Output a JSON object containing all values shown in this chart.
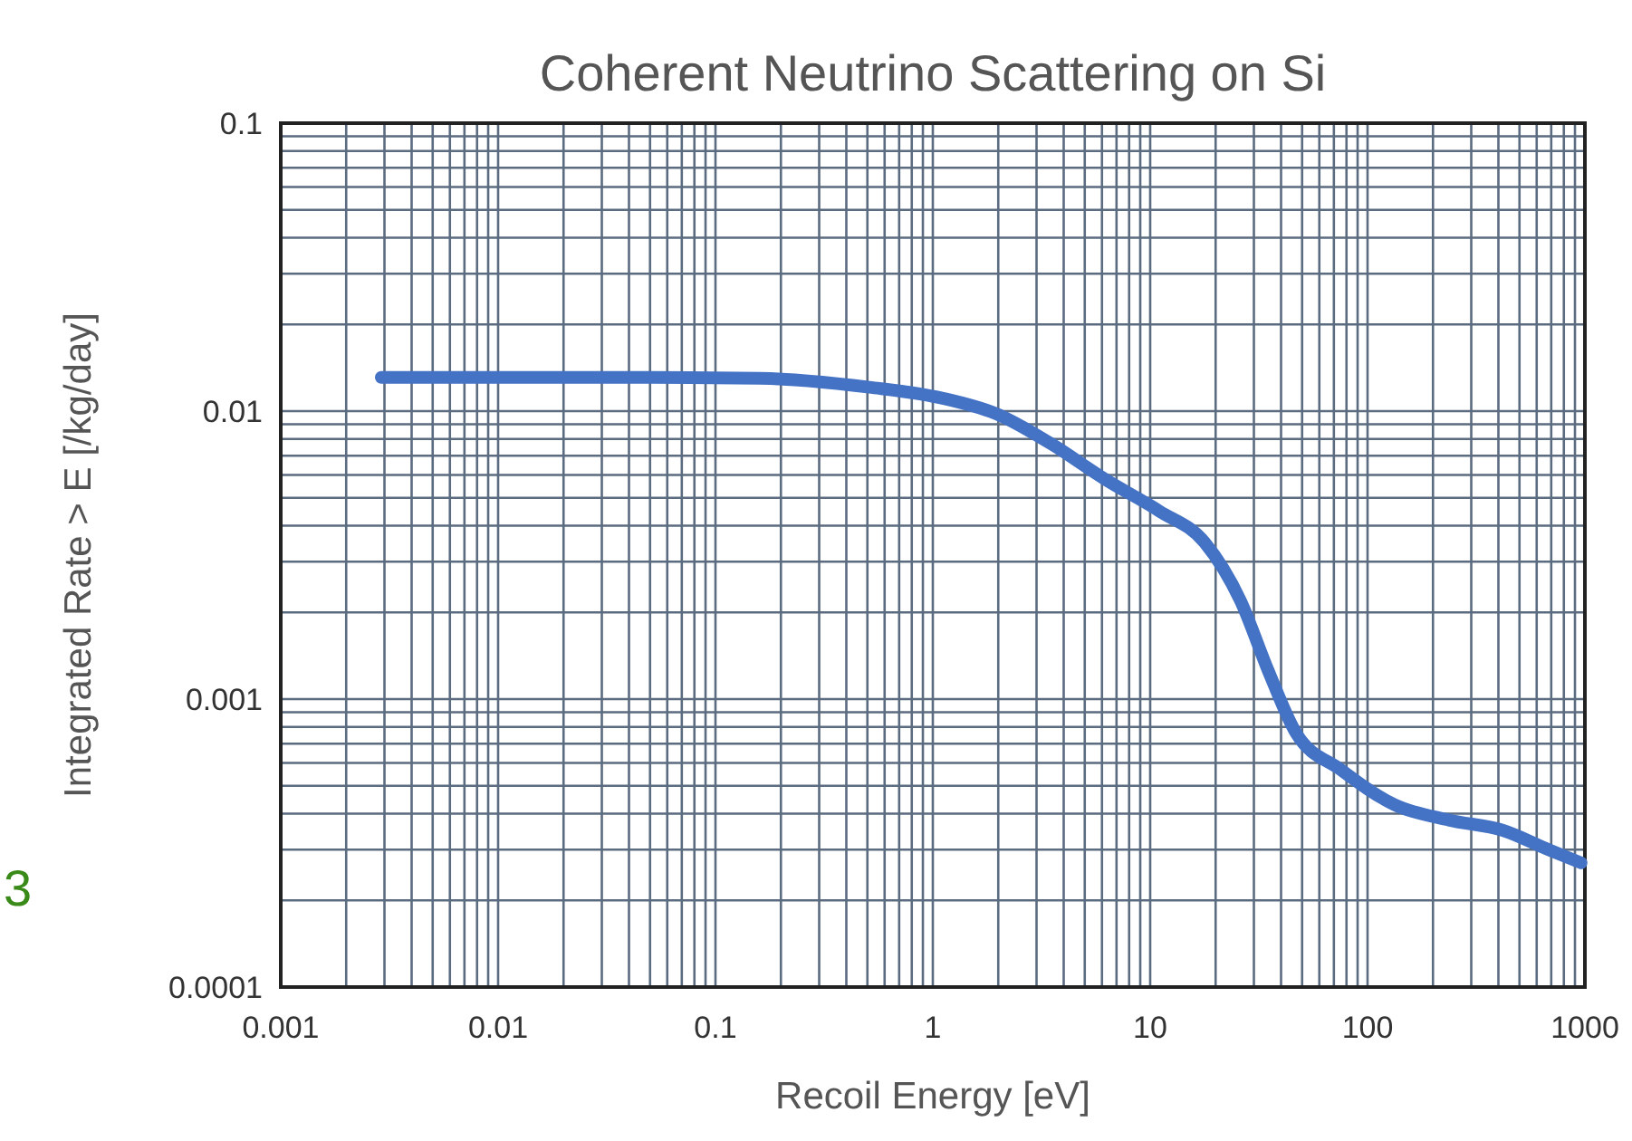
{
  "chart_data": {
    "type": "line",
    "title": "Coherent Neutrino Scattering on Si",
    "xlabel": "Recoil Energy [eV]",
    "ylabel": "Integrated Rate > E [/kg/day]",
    "log": "xy",
    "grid": true,
    "marker": "none",
    "line_style": "solid",
    "xlim": [
      0.001,
      1000
    ],
    "xticks": [
      0.001,
      0.01,
      0.1,
      1,
      10,
      100,
      1000
    ],
    "ylim": [
      0.0001,
      0.1
    ],
    "yticks": [
      0.0001,
      0.001,
      0.01,
      0.1
    ],
    "annotations": [
      "3"
    ],
    "x": [
      0.0029,
      0.051,
      0.16,
      0.51,
      1.1,
      1.95,
      3.5,
      6.2,
      11,
      17.8,
      26,
      35,
      47,
      75,
      133,
      237,
      420,
      680,
      960
    ],
    "series": [
      {
        "color": "#4472c4",
        "values": [
          0.0131,
          0.0131,
          0.013,
          0.0121,
          0.0111,
          0.0098,
          0.0077,
          0.0058,
          0.0045,
          0.0035,
          0.0022,
          0.00125,
          0.00076,
          0.00057,
          0.00043,
          0.00038,
          0.00035,
          0.0003,
          0.00027
        ]
      }
    ]
  }
}
